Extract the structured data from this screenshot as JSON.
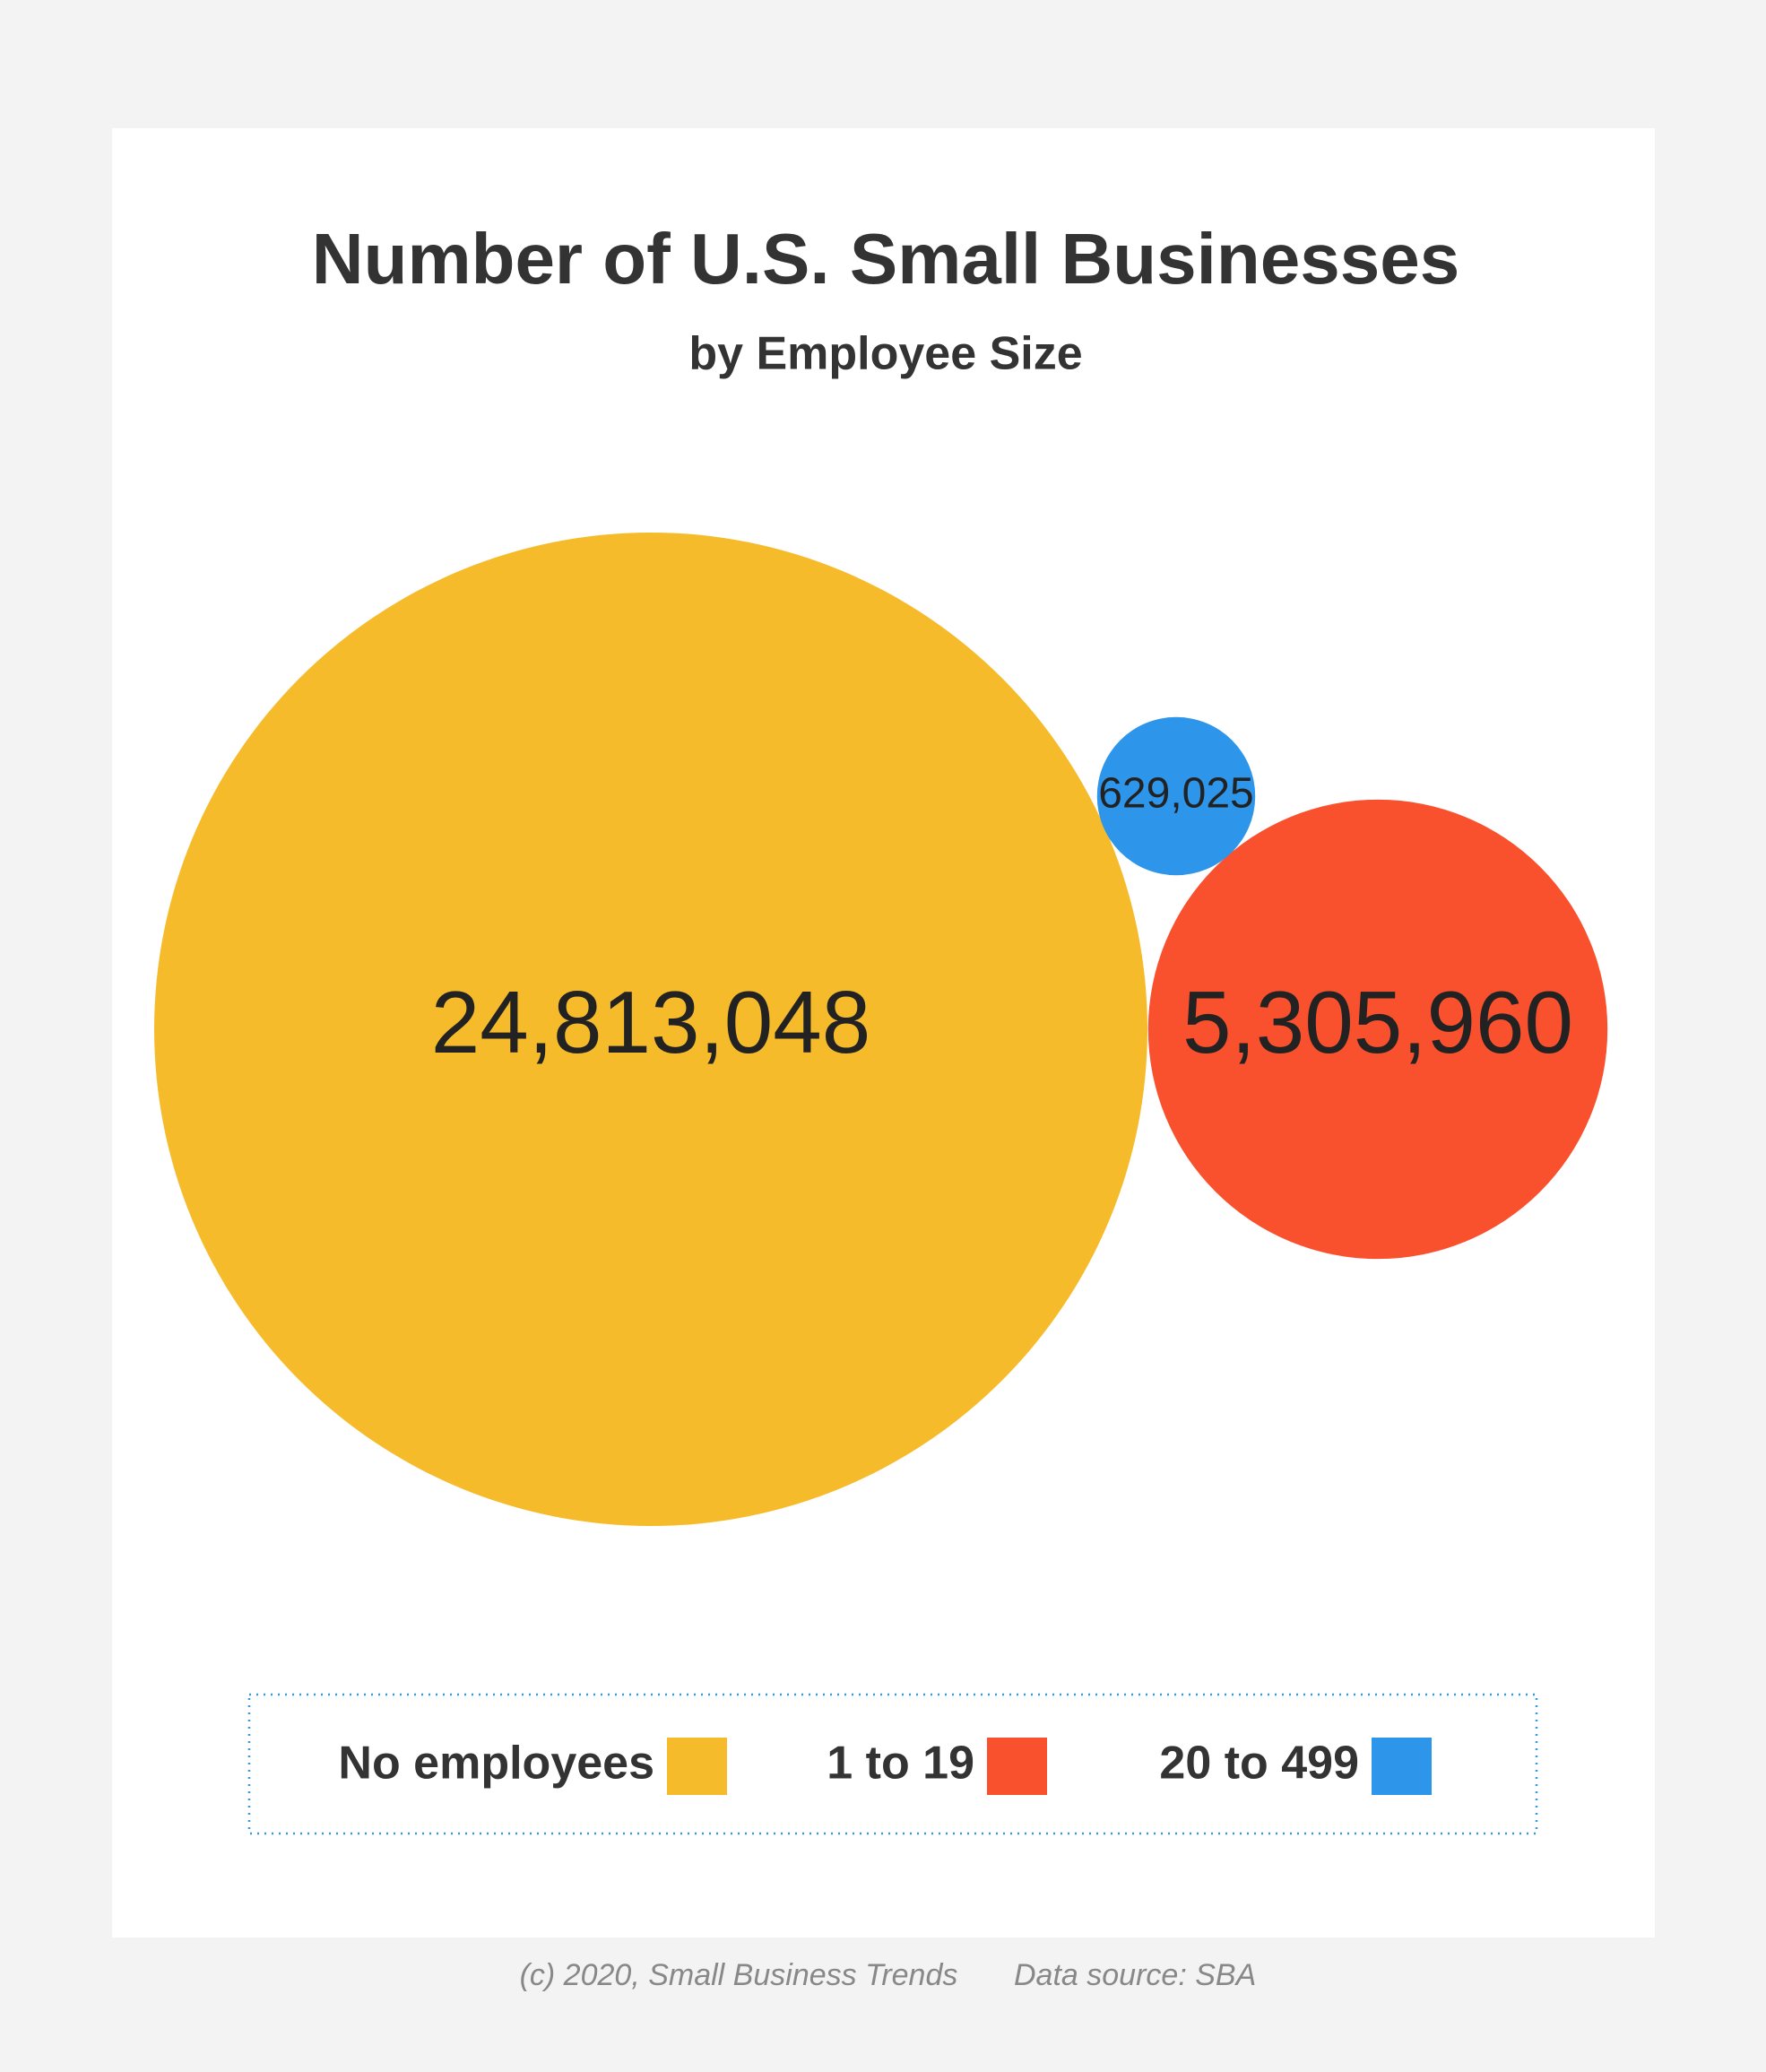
{
  "chart_data": {
    "type": "bubble",
    "title": "Number of U.S. Small Businesses",
    "subtitle": "by Employee Size",
    "series": [
      {
        "name": "No employees",
        "color": "#F6BB2B",
        "values": [
          24813048
        ],
        "value_labels": [
          "24,813,048"
        ]
      },
      {
        "name": "1 to 19",
        "color": "#F9502D",
        "values": [
          5305960
        ],
        "value_labels": [
          "5,305,960"
        ]
      },
      {
        "name": "20 to 499",
        "color": "#2E96EA",
        "values": [
          629025
        ],
        "value_labels": [
          "629,025"
        ]
      }
    ],
    "notes": [
      "(c) 2020, Small Business Trends",
      "Data source: SBA"
    ]
  }
}
